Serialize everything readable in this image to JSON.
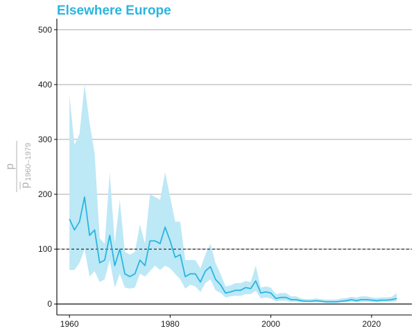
{
  "chart_data": {
    "type": "line",
    "title": "Elsewhere Europe",
    "ylabel": {
      "numerator": "p",
      "denominator": "p",
      "subscript": "1960–1979"
    },
    "xlabel": "",
    "xlim": [
      1957.5,
      2028
    ],
    "ylim": [
      -20,
      520
    ],
    "x_ticks": [
      1960,
      1980,
      2000,
      2020
    ],
    "y_ticks": [
      0,
      100,
      200,
      300,
      400,
      500
    ],
    "grid": "horizontal major",
    "reference_line": {
      "y": 100,
      "style": "dashed"
    },
    "colors": {
      "title": "#29b5e0",
      "line": "#29b5e0",
      "band": "#bde8f6",
      "grid": "#b3b3b3",
      "reference": "#000000"
    },
    "series": [
      {
        "x": [
          1960,
          1961,
          1962,
          1963,
          1964,
          1965,
          1966,
          1967,
          1968,
          1969,
          1970,
          1971,
          1972,
          1973,
          1974,
          1975,
          1976,
          1977,
          1978,
          1979,
          1980,
          1981,
          1982,
          1983,
          1984,
          1985,
          1986,
          1987,
          1988,
          1989,
          1990,
          1991,
          1992,
          1993,
          1994,
          1995,
          1996,
          1997,
          1998,
          1999,
          2000,
          2001,
          2002,
          2003,
          2004,
          2005,
          2006,
          2007,
          2008,
          2009,
          2010,
          2011,
          2012,
          2013,
          2014,
          2015,
          2016,
          2017,
          2018,
          2019,
          2020,
          2021,
          2022,
          2023,
          2024,
          2025
        ],
        "y": [
          155,
          135,
          150,
          195,
          125,
          135,
          75,
          80,
          125,
          70,
          100,
          55,
          50,
          55,
          80,
          70,
          115,
          115,
          110,
          140,
          115,
          85,
          90,
          50,
          55,
          55,
          40,
          60,
          68,
          45,
          35,
          20,
          22,
          25,
          25,
          30,
          28,
          42,
          20,
          22,
          20,
          10,
          12,
          12,
          8,
          8,
          6,
          5,
          5,
          6,
          5,
          4,
          4,
          4,
          5,
          6,
          8,
          6,
          8,
          8,
          7,
          6,
          7,
          7,
          8,
          10
        ],
        "lower": [
          62,
          62,
          75,
          100,
          50,
          60,
          40,
          45,
          80,
          30,
          55,
          30,
          28,
          30,
          55,
          50,
          60,
          70,
          62,
          70,
          65,
          55,
          45,
          28,
          35,
          32,
          22,
          38,
          45,
          25,
          20,
          12,
          14,
          15,
          15,
          18,
          18,
          24,
          10,
          12,
          10,
          5,
          6,
          6,
          4,
          4,
          3,
          3,
          3,
          3,
          3,
          2,
          2,
          2,
          3,
          3,
          4,
          3,
          4,
          4,
          4,
          3,
          4,
          4,
          4,
          5
        ],
        "upper": [
          380,
          290,
          310,
          400,
          330,
          275,
          120,
          110,
          240,
          110,
          190,
          95,
          90,
          95,
          145,
          110,
          200,
          195,
          190,
          240,
          195,
          150,
          150,
          80,
          80,
          80,
          65,
          90,
          110,
          75,
          55,
          32,
          34,
          38,
          38,
          42,
          40,
          70,
          30,
          32,
          30,
          18,
          20,
          20,
          14,
          14,
          10,
          9,
          9,
          10,
          9,
          8,
          8,
          8,
          10,
          11,
          13,
          12,
          14,
          14,
          12,
          11,
          12,
          12,
          13,
          20
        ]
      }
    ]
  }
}
